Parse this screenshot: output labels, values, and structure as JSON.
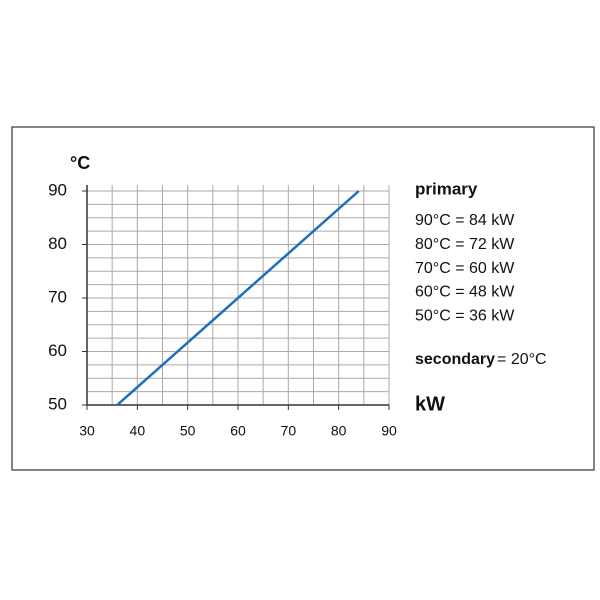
{
  "chart_data": {
    "type": "line",
    "y_label": "°C",
    "x_label": "kW",
    "x": [
      36,
      84
    ],
    "series": [
      {
        "name": "primary",
        "color": "#1f6fb8",
        "values": [
          50,
          90
        ]
      }
    ],
    "xlim": [
      30,
      90
    ],
    "xticks": [
      30,
      40,
      50,
      60,
      70,
      80,
      90
    ],
    "ylim": [
      50,
      90
    ],
    "yticks": [
      50,
      60,
      70,
      80,
      90
    ],
    "xgrid": [
      30,
      35,
      40,
      45,
      50,
      55,
      60,
      65,
      70,
      75,
      80,
      85,
      90
    ],
    "ygrid": [
      50,
      52.5,
      55,
      57.5,
      60,
      62.5,
      65,
      67.5,
      70,
      72.5,
      75,
      77.5,
      80,
      82.5,
      85,
      87.5,
      90
    ],
    "annotations": {
      "heading": "primary",
      "lines": [
        "90°C = 84 kW",
        "80°C = 72 kW",
        "70°C = 60 kW",
        "60°C = 48 kW",
        "50°C = 36 kW"
      ],
      "secondary_label": "secondary",
      "secondary_value": "= 20°C"
    }
  }
}
